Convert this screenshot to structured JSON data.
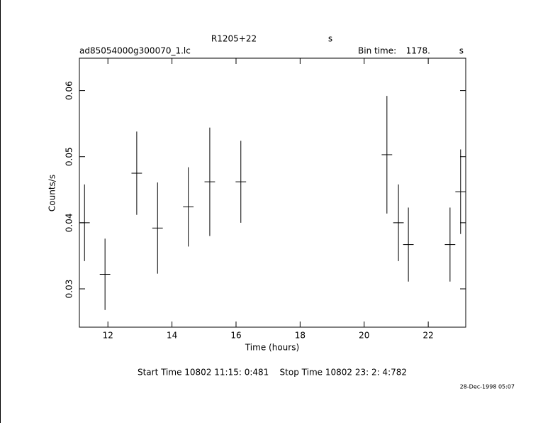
{
  "chart_data": {
    "type": "errorbar",
    "title": "R1205+22",
    "title_unit": "s",
    "subtitle": "ad85054000g300070_1.lc",
    "bin_time_label": "Bin time:",
    "bin_time": "1178.",
    "bin_time_unit": "s",
    "x_label": "Time (hours)",
    "y_label": "Counts/s",
    "footer": "Start Time 10802 11:15: 0:481    Stop Time 10802 23: 2: 4:782",
    "date": "28-Dec-1998 05:07",
    "x": [
      11.27,
      11.91,
      12.9,
      13.55,
      14.51,
      15.18,
      16.15,
      20.71,
      21.07,
      21.38,
      22.68,
      23.01
    ],
    "values": [
      0.04,
      0.0322,
      0.0475,
      0.0392,
      0.0424,
      0.0462,
      0.0462,
      0.0503,
      0.04,
      0.0367,
      0.0367,
      0.0447
    ],
    "xerr": [
      0.164,
      0.164,
      0.164,
      0.164,
      0.164,
      0.164,
      0.164,
      0.164,
      0.164,
      0.164,
      0.164,
      0.164
    ],
    "yerr": [
      0.0058,
      0.0054,
      0.0063,
      0.0069,
      0.006,
      0.0082,
      0.0062,
      0.0089,
      0.0058,
      0.0056,
      0.0056,
      0.0064
    ],
    "color": "#000000",
    "xlim": [
      11.11,
      23.17
    ],
    "xticks": [
      12,
      14,
      16,
      18,
      20,
      22
    ],
    "ylim": [
      0.0242,
      0.0649
    ],
    "yticks": [
      0.03,
      0.04,
      0.05,
      0.06
    ]
  }
}
